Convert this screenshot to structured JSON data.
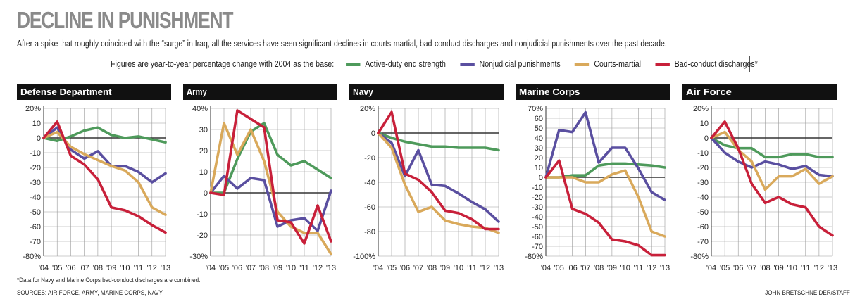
{
  "title": "DECLINE IN PUNISHMENT",
  "subtitle": "After a spike that roughly coincided with the “surge” in Iraq, all the services have seen significant declines in courts-martial, bad-conduct discharges and nonjudicial punishments over the past decade.",
  "legend": {
    "note": "Figures are year-to-year percentage change with 2004 as the base:",
    "items": [
      {
        "label": "Active-duty end strength",
        "color": "#4e9a5b"
      },
      {
        "label": "Nonjudicial punishments",
        "color": "#5a4fa0"
      },
      {
        "label": "Courts-martial",
        "color": "#d9a95b"
      },
      {
        "label": "Bad-conduct discharges*",
        "color": "#c8203a"
      }
    ]
  },
  "footnote": "*Data for Navy and Marine Corps bad-conduct discharges are combined.",
  "sources": "SOURCES: AIR FORCE, ARMY, MARINE CORPS, NAVY",
  "credit": "JOHN BRETSCHNEIDER/STAFF",
  "colors": {
    "header_bg": "#111111",
    "header_text": "#ffffff",
    "grid": "#999999",
    "axis": "#333333"
  },
  "chart_data": [
    {
      "type": "line",
      "title": "Defense Department",
      "x": [
        "'04",
        "'05",
        "'06",
        "'07",
        "'08",
        "'09",
        "'10",
        "'11",
        "'12",
        "'13"
      ],
      "ylim": [
        -80,
        20
      ],
      "yticks": [
        20,
        10,
        0,
        -10,
        -20,
        -30,
        -40,
        -50,
        -60,
        -70,
        -80
      ],
      "ytick_labels": [
        "20%",
        "10",
        "0",
        "-10",
        "-20",
        "-30",
        "-40",
        "-50",
        "-60",
        "-70",
        "-80%"
      ],
      "series": [
        {
          "name": "Active-duty end strength",
          "values": [
            0,
            -2,
            1,
            5,
            7,
            2,
            0,
            1,
            -1,
            -3
          ]
        },
        {
          "name": "Nonjudicial punishments",
          "values": [
            0,
            7,
            -8,
            -14,
            -9,
            -19,
            -19,
            -23,
            -30,
            -24
          ]
        },
        {
          "name": "Courts-martial",
          "values": [
            0,
            4,
            -6,
            -11,
            -15,
            -19,
            -22,
            -30,
            -47,
            -52
          ]
        },
        {
          "name": "Bad-conduct discharges*",
          "values": [
            0,
            11,
            -12,
            -18,
            -28,
            -47,
            -49,
            -53,
            -59,
            -64
          ]
        }
      ]
    },
    {
      "type": "line",
      "title": "Army",
      "x": [
        "'04",
        "'05",
        "'06",
        "'07",
        "'08",
        "'09",
        "'10",
        "'11",
        "'12",
        "'13"
      ],
      "ylim": [
        -30,
        40
      ],
      "yticks": [
        40,
        30,
        20,
        10,
        0,
        -10,
        -20,
        -30
      ],
      "ytick_labels": [
        "40%",
        "30",
        "20",
        "10",
        "0",
        "-10",
        "-20",
        "-30%"
      ],
      "series": [
        {
          "name": "Active-duty end strength",
          "values": [
            0,
            0,
            16,
            29,
            33,
            18,
            13,
            15,
            11,
            7
          ]
        },
        {
          "name": "Nonjudicial punishments",
          "values": [
            0,
            8,
            2,
            7,
            6,
            -16,
            -13,
            -12,
            -18,
            1
          ]
        },
        {
          "name": "Courts-martial",
          "values": [
            0,
            33,
            18,
            30,
            15,
            -9,
            -16,
            -19,
            -19,
            -29
          ]
        },
        {
          "name": "Bad-conduct discharges*",
          "values": [
            0,
            -1,
            39,
            35,
            31,
            -13,
            -14,
            -24,
            -6,
            -23
          ]
        }
      ]
    },
    {
      "type": "line",
      "title": "Navy",
      "x": [
        "'04",
        "'05",
        "'06",
        "'07",
        "'08",
        "'09",
        "'10",
        "'11",
        "'12",
        "'13"
      ],
      "ylim": [
        -100,
        20
      ],
      "yticks": [
        20,
        0,
        -20,
        -40,
        -60,
        -80,
        -100
      ],
      "ytick_labels": [
        "20%",
        "0",
        "-20",
        "-40",
        "-60",
        "-80",
        "-100%"
      ],
      "series": [
        {
          "name": "Active-duty end strength",
          "values": [
            0,
            -4,
            -7,
            -9,
            -11,
            -11,
            -12,
            -12,
            -12,
            -14
          ]
        },
        {
          "name": "Nonjudicial punishments",
          "values": [
            0,
            -8,
            -35,
            -14,
            -42,
            -43,
            -49,
            -56,
            -62,
            -72
          ]
        },
        {
          "name": "Courts-martial",
          "values": [
            0,
            -12,
            -42,
            -64,
            -60,
            -71,
            -74,
            -76,
            -77,
            -81
          ]
        },
        {
          "name": "Bad-conduct discharges*",
          "values": [
            0,
            17,
            -33,
            -38,
            -48,
            -63,
            -65,
            -70,
            -78,
            -78
          ]
        }
      ]
    },
    {
      "type": "line",
      "title": "Marine Corps",
      "x": [
        "'04",
        "'05",
        "'06",
        "'07",
        "'08",
        "'09",
        "'10",
        "'11",
        "'12",
        "'13"
      ],
      "ylim": [
        -80,
        70
      ],
      "yticks": [
        70,
        60,
        50,
        40,
        30,
        20,
        10,
        0,
        -10,
        -20,
        -30,
        -40,
        -50,
        -60,
        -70,
        -80
      ],
      "ytick_labels": [
        "70%",
        "60",
        "50",
        "40",
        "30",
        "20",
        "10",
        "0",
        "-10",
        "-20",
        "-30",
        "-40",
        "-50",
        "-60",
        "-70",
        "-80%"
      ],
      "series": [
        {
          "name": "Active-duty end strength",
          "values": [
            0,
            0,
            2,
            2,
            12,
            14,
            14,
            13,
            12,
            10
          ]
        },
        {
          "name": "Nonjudicial punishments",
          "values": [
            0,
            48,
            46,
            66,
            15,
            30,
            30,
            9,
            -15,
            -23
          ]
        },
        {
          "name": "Courts-martial",
          "values": [
            0,
            0,
            0,
            -5,
            -5,
            3,
            7,
            -20,
            -55,
            -60
          ]
        },
        {
          "name": "Bad-conduct discharges*",
          "values": [
            0,
            17,
            -32,
            -37,
            -46,
            -63,
            -65,
            -69,
            -79,
            -79
          ]
        }
      ]
    },
    {
      "type": "line",
      "title": "Air Force",
      "x": [
        "'04",
        "'05",
        "'06",
        "'07",
        "'08",
        "'09",
        "'10",
        "'11",
        "'12",
        "'13"
      ],
      "ylim": [
        -80,
        20
      ],
      "yticks": [
        20,
        10,
        0,
        -10,
        -20,
        -30,
        -40,
        -50,
        -60,
        -70,
        -80
      ],
      "ytick_labels": [
        "20%",
        "10",
        "0",
        "-10",
        "-20",
        "-30",
        "-40",
        "-50",
        "-60",
        "-70",
        "-80%"
      ],
      "series": [
        {
          "name": "Active-duty end strength",
          "values": [
            0,
            -5,
            -7,
            -7,
            -13,
            -13,
            -11,
            -11,
            -13,
            -13
          ]
        },
        {
          "name": "Nonjudicial punishments",
          "values": [
            0,
            -10,
            -16,
            -20,
            -16,
            -18,
            -21,
            -19,
            -25,
            -26
          ]
        },
        {
          "name": "Courts-martial",
          "values": [
            0,
            4,
            -8,
            -16,
            -35,
            -26,
            -26,
            -21,
            -31,
            -26
          ]
        },
        {
          "name": "Bad-conduct discharges*",
          "values": [
            0,
            11,
            -7,
            -31,
            -44,
            -40,
            -45,
            -47,
            -60,
            -66
          ]
        }
      ]
    }
  ]
}
